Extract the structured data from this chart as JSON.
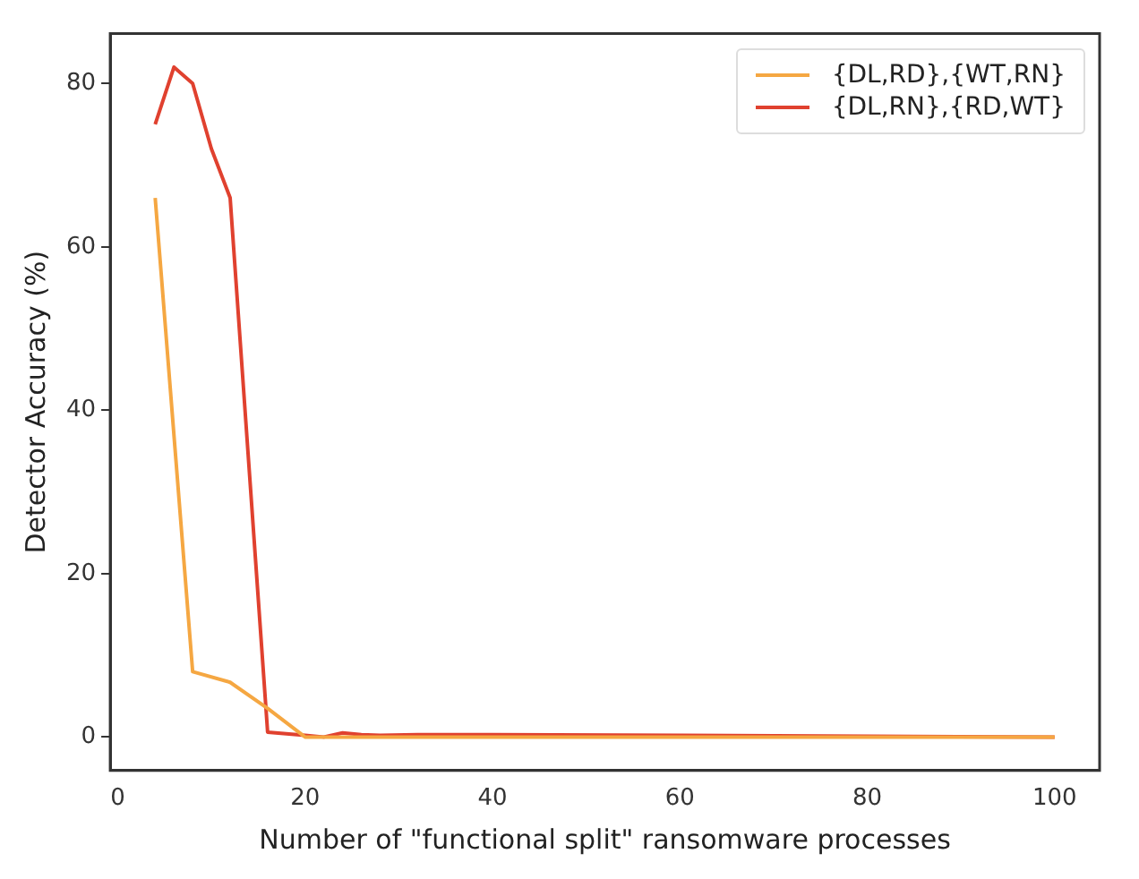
{
  "chart_data": {
    "type": "line",
    "xlabel": "Number of \"functional split\" ransomware processes",
    "ylabel": "Detector Accuracy (%)",
    "xlim": [
      -0.8,
      104.8
    ],
    "xticks": [
      0,
      20,
      40,
      60,
      80,
      100
    ],
    "ylim": [
      -4.1,
      86.1
    ],
    "yticks": [
      0,
      20,
      40,
      60,
      80
    ],
    "grid": false,
    "legend": "top right",
    "marker": "none",
    "line_style": "solid",
    "series": [
      {
        "name": "{DL,RD},{WT,RN}",
        "color": "#f5a742",
        "x": [
          4,
          8,
          12,
          16,
          20,
          22,
          24,
          28,
          32,
          40,
          60,
          80,
          100
        ],
        "values": [
          66,
          8,
          6.7,
          3.5,
          0,
          0,
          0,
          0,
          0,
          0,
          0,
          0,
          0
        ]
      },
      {
        "name": "{DL,RN},{RD,WT}",
        "color": "#e0412f",
        "x": [
          4,
          6,
          8,
          10,
          12,
          16,
          20,
          22,
          24,
          26,
          28,
          32,
          40,
          60,
          80,
          100
        ],
        "values": [
          75,
          82,
          80,
          72,
          66,
          0.6,
          0.2,
          0,
          0.5,
          0.3,
          0.2,
          0.3,
          0.3,
          0.2,
          0.1,
          0
        ]
      }
    ]
  }
}
